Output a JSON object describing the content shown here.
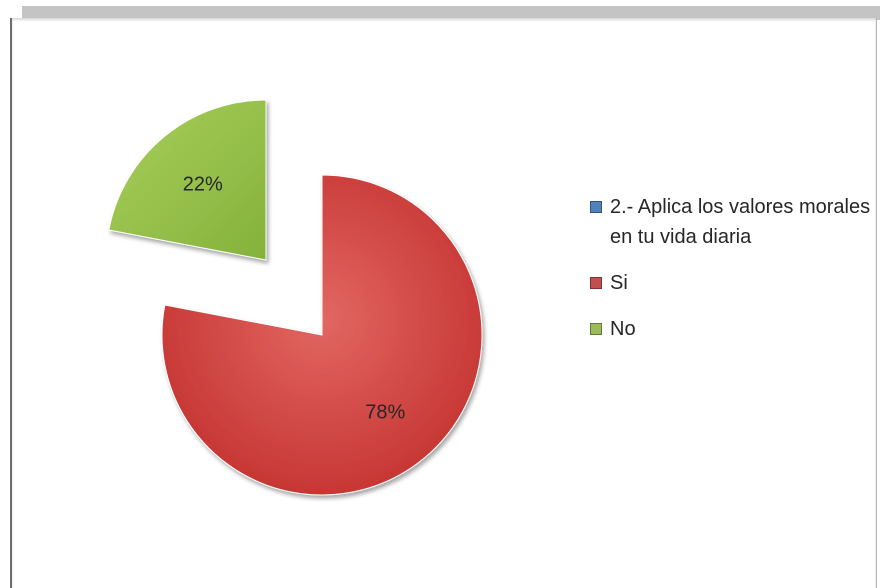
{
  "chart_data": {
    "type": "pie",
    "title": "",
    "legend_position": "right",
    "series": [
      {
        "name": "2.- Aplica los valores morales en tu vida diaria",
        "value": null,
        "color": "#4f81bd"
      },
      {
        "name": "Si",
        "value": 78,
        "label": "78%",
        "color": "#c0504d"
      },
      {
        "name": "No",
        "value": 22,
        "label": "22%",
        "color": "#9bbb59"
      }
    ]
  }
}
